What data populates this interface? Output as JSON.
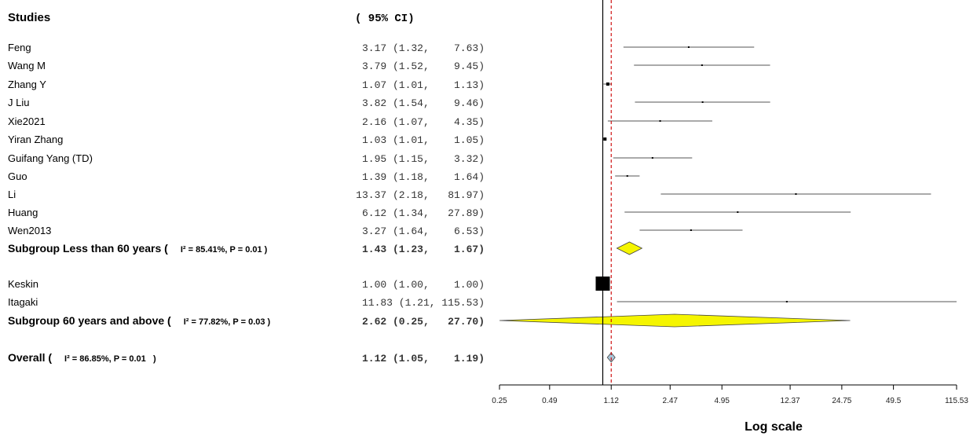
{
  "chart_data": {
    "type": "forest",
    "header_left": "Studies",
    "header_ci": "( 95% CI)",
    "x_scale": "log",
    "ticks": [
      "0.25",
      "0.49",
      "1.12",
      "2.47",
      "4.95",
      "12.37",
      "24.75",
      "49.5",
      "115.53"
    ],
    "tick_values": [
      0.25,
      0.49,
      1.12,
      2.47,
      4.95,
      12.37,
      24.75,
      49.5,
      115.53
    ],
    "x_axis_label": "Log scale",
    "null_line": 1.0,
    "overall_line": 1.12,
    "rows": [
      {
        "kind": "study",
        "label": "Feng",
        "est": 3.17,
        "lo": 1.32,
        "hi": 7.63,
        "ci_text": "3.17 (1.32,    7.63)"
      },
      {
        "kind": "study",
        "label": "Wang M",
        "est": 3.79,
        "lo": 1.52,
        "hi": 9.45,
        "ci_text": "3.79 (1.52,    9.45)"
      },
      {
        "kind": "study",
        "label": "Zhang Y",
        "est": 1.07,
        "lo": 1.01,
        "hi": 1.13,
        "ci_text": "1.07 (1.01,    1.13)"
      },
      {
        "kind": "study",
        "label": "J Liu",
        "est": 3.82,
        "lo": 1.54,
        "hi": 9.46,
        "ci_text": "3.82 (1.54,    9.46)"
      },
      {
        "kind": "study",
        "label": "Xie2021",
        "est": 2.16,
        "lo": 1.07,
        "hi": 4.35,
        "ci_text": "2.16 (1.07,    4.35)"
      },
      {
        "kind": "study",
        "label": "Yiran Zhang",
        "est": 1.03,
        "lo": 1.01,
        "hi": 1.05,
        "ci_text": "1.03 (1.01,    1.05)"
      },
      {
        "kind": "study",
        "label": "Guifang Yang (TD)",
        "est": 1.95,
        "lo": 1.15,
        "hi": 3.32,
        "ci_text": "1.95 (1.15,    3.32)"
      },
      {
        "kind": "study",
        "label": "Guo",
        "est": 1.39,
        "lo": 1.18,
        "hi": 1.64,
        "ci_text": "1.39 (1.18,    1.64)"
      },
      {
        "kind": "study",
        "label": "Li",
        "est": 13.37,
        "lo": 2.18,
        "hi": 81.97,
        "ci_text": "13.37 (2.18,   81.97)"
      },
      {
        "kind": "study",
        "label": "Huang",
        "est": 6.12,
        "lo": 1.34,
        "hi": 27.89,
        "ci_text": "6.12 (1.34,   27.89)"
      },
      {
        "kind": "study",
        "label": "Wen2013",
        "est": 3.27,
        "lo": 1.64,
        "hi": 6.53,
        "ci_text": "3.27 (1.64,    6.53)"
      },
      {
        "kind": "subgroup",
        "label": "Subgroup Less than 60 years (",
        "stat": "I² = 85.41%, P = 0.01 )",
        "est": 1.43,
        "lo": 1.23,
        "hi": 1.67,
        "ci_text": "1.43 (1.23,    1.67)"
      },
      {
        "kind": "study",
        "label": "Keskin",
        "est": 1.0,
        "lo": 1.0,
        "hi": 1.0,
        "ci_text": "1.00 (1.00,    1.00)"
      },
      {
        "kind": "study",
        "label": "Itagaki",
        "est": 11.83,
        "lo": 1.21,
        "hi": 115.53,
        "ci_text": "11.83 (1.21, 115.53)"
      },
      {
        "kind": "subgroup",
        "label": "Subgroup 60 years and above (",
        "stat": "I² = 77.82%, P = 0.03 )",
        "est": 2.62,
        "lo": 0.25,
        "hi": 27.7,
        "ci_text": "2.62 (0.25,   27.70)"
      },
      {
        "kind": "overall",
        "label": "Overall (",
        "stat": "I² = 86.85%, P = 0.01   )",
        "est": 1.12,
        "lo": 1.05,
        "hi": 1.19,
        "ci_text": "1.12 (1.05,    1.19)"
      }
    ],
    "colors": {
      "diamond_subgroup": "#f5f500",
      "diamond_overall": "#a9c6d9",
      "null_line": "#000000",
      "overall_line": "#cc0000",
      "ci_line": "#555555"
    }
  }
}
